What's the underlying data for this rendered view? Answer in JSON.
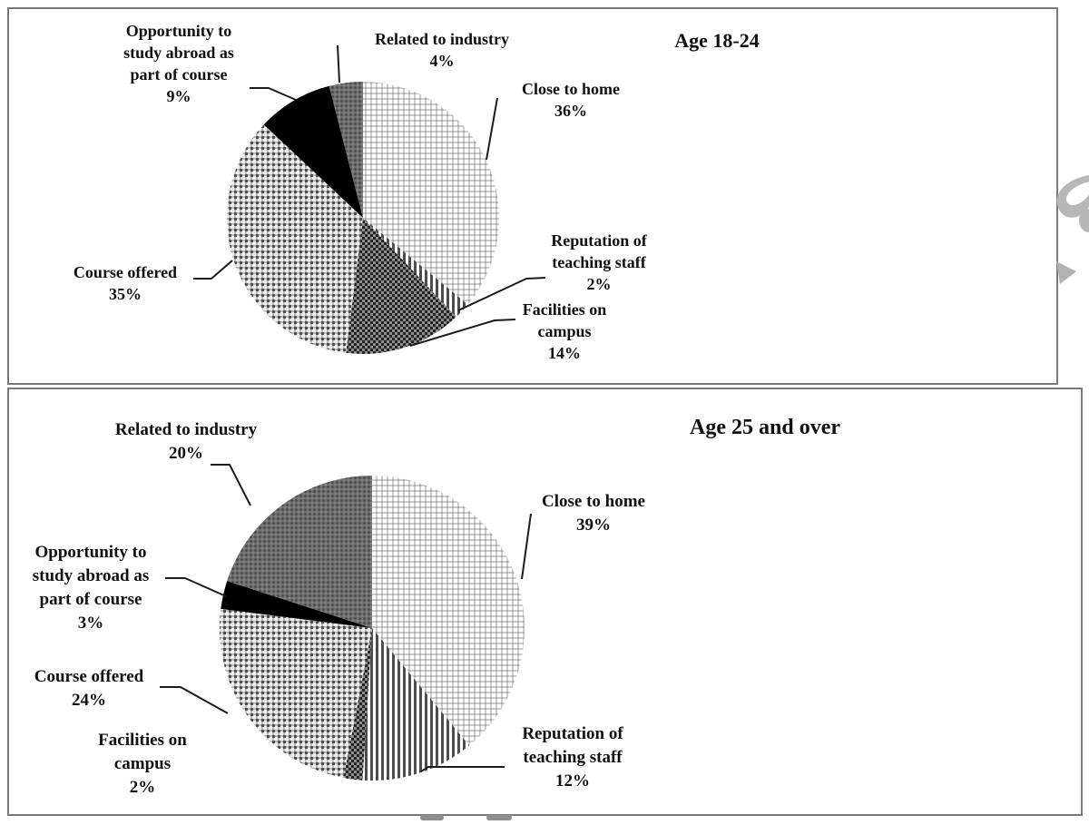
{
  "page": {
    "background": "#ffffff",
    "panel_border_color": "#7a7a7a",
    "text_color": "#111111",
    "watermark_color": "#b7b7b7"
  },
  "chart_data": [
    {
      "type": "pie",
      "title": "Age 18-24",
      "categories": [
        "Close to home",
        "Reputation of teaching staff",
        "Facilities on campus",
        "Course offered",
        "Opportunity to study abroad as part of course",
        "Related to industry"
      ],
      "values": [
        36,
        2,
        14,
        35,
        9,
        4
      ],
      "unit": "%",
      "start_angle": "12-oclock",
      "direction": "clockwise",
      "legend": "none",
      "pattern_fills": [
        "light-dots",
        "v-stripes",
        "dark-check",
        "mid-check",
        "#000000",
        "dark-dots"
      ],
      "callouts": [
        {
          "label": "Close to home",
          "value": 36,
          "display": "Close to home\n36%"
        },
        {
          "label": "Reputation of teaching staff",
          "value": 2,
          "display": "Reputation of\nteaching staff\n2%"
        },
        {
          "label": "Facilities on campus",
          "value": 14,
          "display": "Facilities on\ncampus\n14%"
        },
        {
          "label": "Course offered",
          "value": 35,
          "display": "Course offered\n35%"
        },
        {
          "label": "Opportunity to study abroad as part of course",
          "value": 9,
          "display": "Opportunity to\nstudy abroad as\npart of course\n9%"
        },
        {
          "label": "Related to industry",
          "value": 4,
          "display": "Related to industry\n4%"
        }
      ]
    },
    {
      "type": "pie",
      "title": "Age 25 and over",
      "categories": [
        "Close to home",
        "Reputation of teaching staff",
        "Facilities on campus",
        "Course offered",
        "Opportunity to study abroad as part of course",
        "Related to industry"
      ],
      "values": [
        39,
        12,
        2,
        24,
        3,
        20
      ],
      "unit": "%",
      "start_angle": "12-oclock",
      "direction": "clockwise",
      "legend": "none",
      "pattern_fills": [
        "light-dots",
        "v-stripes",
        "dark-check",
        "mid-check",
        "#000000",
        "dark-dots"
      ],
      "callouts": [
        {
          "label": "Close to home",
          "value": 39,
          "display": "Close to home\n39%"
        },
        {
          "label": "Reputation of teaching staff",
          "value": 12,
          "display": "Reputation of\nteaching staff\n12%"
        },
        {
          "label": "Facilities on campus",
          "value": 2,
          "display": "Facilities on\ncampus\n2%"
        },
        {
          "label": "Course offered",
          "value": 24,
          "display": "Course offered\n24%"
        },
        {
          "label": "Opportunity to study abroad as part of course",
          "value": 3,
          "display": "Opportunity to\nstudy abroad as\npart of course\n3%"
        },
        {
          "label": "Related to industry",
          "value": 20,
          "display": "Related to industry\n20%"
        }
      ]
    }
  ]
}
